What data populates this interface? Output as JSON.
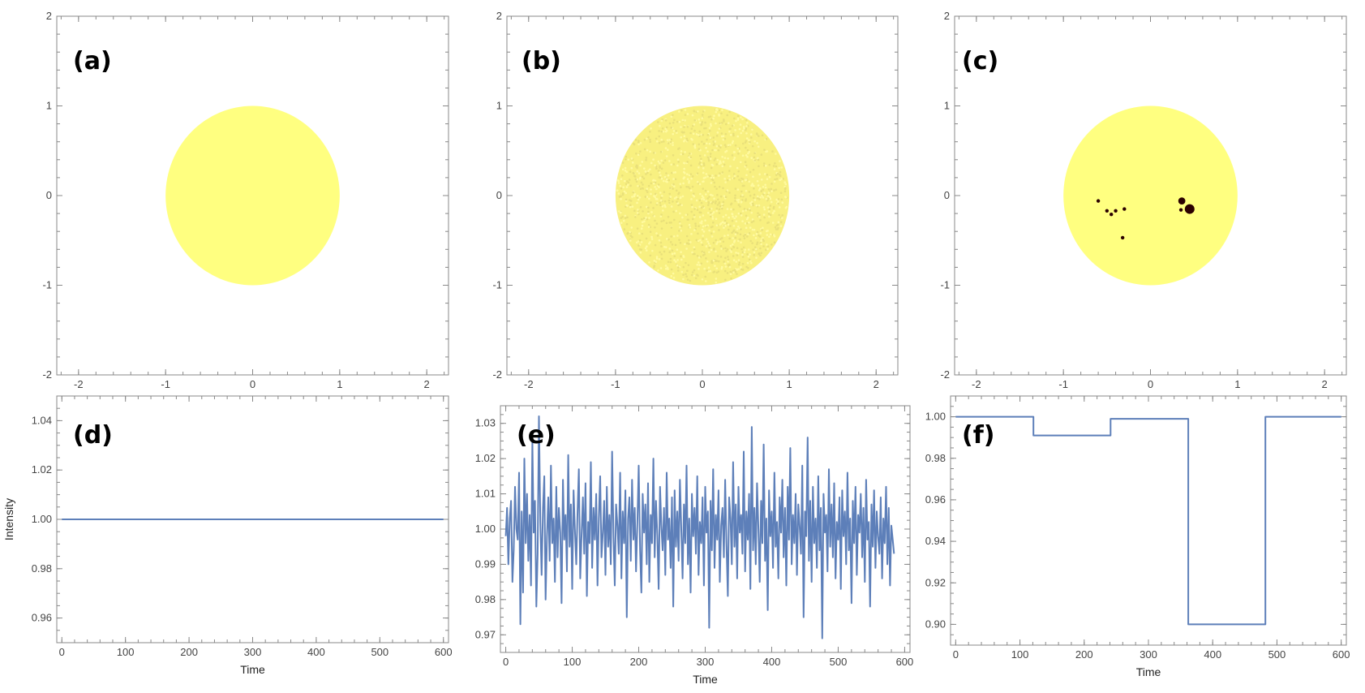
{
  "chart_data": [
    {
      "panel": "(a)",
      "type": "scatter",
      "title": "",
      "xlabel": "",
      "ylabel": "",
      "xlim": [
        -2.25,
        2.25
      ],
      "ylim": [
        -2,
        2
      ],
      "xticks": [
        "-2",
        "-1",
        "0",
        "1",
        "2"
      ],
      "yticks": [
        "-2",
        "-1",
        "0",
        "1",
        "2"
      ],
      "disk": {
        "center": [
          0,
          0
        ],
        "radius": 1,
        "color": "#ffff80",
        "texture": "uniform"
      },
      "spots": []
    },
    {
      "panel": "(b)",
      "type": "scatter",
      "title": "",
      "xlabel": "",
      "ylabel": "",
      "xlim": [
        -2.25,
        2.25
      ],
      "ylim": [
        -2,
        2
      ],
      "xticks": [
        "-2",
        "-1",
        "0",
        "1",
        "2"
      ],
      "yticks": [
        "-2",
        "-1",
        "0",
        "1",
        "2"
      ],
      "disk": {
        "center": [
          0,
          0
        ],
        "radius": 1,
        "color": "#f8f080",
        "texture": "granulated"
      },
      "spots": []
    },
    {
      "panel": "(c)",
      "type": "scatter",
      "title": "",
      "xlabel": "",
      "ylabel": "",
      "xlim": [
        -2.25,
        2.25
      ],
      "ylim": [
        -2,
        2
      ],
      "xticks": [
        "-2",
        "-1",
        "0",
        "1",
        "2"
      ],
      "yticks": [
        "-2",
        "-1",
        "0",
        "1",
        "2"
      ],
      "disk": {
        "center": [
          0,
          0
        ],
        "radius": 1,
        "color": "#ffff80",
        "texture": "uniform"
      },
      "spot_color": "#2b0000",
      "spots": [
        {
          "x": -0.6,
          "y": -0.06,
          "r": 0.02
        },
        {
          "x": -0.5,
          "y": -0.17,
          "r": 0.02
        },
        {
          "x": -0.45,
          "y": -0.21,
          "r": 0.02
        },
        {
          "x": -0.4,
          "y": -0.17,
          "r": 0.02
        },
        {
          "x": -0.3,
          "y": -0.15,
          "r": 0.02
        },
        {
          "x": -0.32,
          "y": -0.47,
          "r": 0.02
        },
        {
          "x": 0.36,
          "y": -0.06,
          "r": 0.04
        },
        {
          "x": 0.35,
          "y": -0.16,
          "r": 0.02
        },
        {
          "x": 0.45,
          "y": -0.15,
          "r": 0.055
        }
      ]
    },
    {
      "panel": "(d)",
      "type": "line",
      "title": "",
      "xlabel": "Time",
      "ylabel": "Intensity",
      "xlim": [
        -8,
        608
      ],
      "ylim": [
        0.95,
        1.05
      ],
      "xticks": [
        0,
        100,
        200,
        300,
        400,
        500,
        600
      ],
      "yticks": [
        0.96,
        0.98,
        1.0,
        1.02,
        1.04
      ],
      "yticks_text": [
        "0.96",
        "0.98",
        "1.00",
        "1.02",
        "1.04"
      ],
      "color": "#5d7fb9",
      "series": [
        {
          "x": [
            0,
            600
          ],
          "values": [
            1.0,
            1.0
          ]
        }
      ]
    },
    {
      "panel": "(e)",
      "type": "line",
      "title": "",
      "xlabel": "Time",
      "ylabel": "",
      "xlim": [
        -8,
        608
      ],
      "ylim": [
        0.965,
        1.035
      ],
      "xticks": [
        0,
        100,
        200,
        300,
        400,
        500,
        600
      ],
      "yticks": [
        0.97,
        0.98,
        0.99,
        1.0,
        1.01,
        1.02,
        1.03
      ],
      "yticks_text": [
        "0.97",
        "0.98",
        "0.99",
        "1.00",
        "1.01",
        "1.02",
        "1.03"
      ],
      "color": "#5d7fb9",
      "series": [
        {
          "x_start": 0,
          "x_step": 2,
          "values": [
            0.998,
            1.006,
            0.99,
            1.003,
            1.008,
            0.985,
            0.994,
            1.012,
            1.0,
            0.997,
            1.016,
            0.973,
            1.005,
            0.982,
            1.02,
            0.996,
            1.01,
            0.991,
            1.004,
            0.984,
            1.025,
            0.999,
            1.008,
            0.978,
            0.993,
            1.032,
            1.002,
            0.987,
            1.006,
            1.015,
            0.98,
            0.998,
            1.009,
            0.991,
            1.018,
            0.996,
            1.003,
            0.985,
            1.012,
            0.992,
            1.006,
            0.999,
            0.979,
            1.014,
            0.997,
            1.004,
            0.988,
            1.021,
            0.995,
            1.007,
            0.983,
            1.011,
            1.0,
            0.99,
            1.005,
            1.017,
            0.986,
            0.998,
            1.009,
            0.993,
            1.013,
            0.981,
            1.002,
            0.996,
            1.019,
            0.989,
            1.006,
            0.997,
            1.01,
            0.984,
            1.003,
            1.015,
            0.992,
            0.999,
            1.008,
            0.987,
            1.012,
            0.995,
            1.004,
            0.99,
            1.022,
            0.998,
            0.984,
            1.007,
            1.001,
            0.993,
            1.016,
            0.986,
            1.005,
            0.996,
            1.011,
            0.975,
            1.003,
            1.009,
            0.991,
            1.014,
            0.997,
            1.006,
            0.988,
            1.002,
            1.018,
            0.994,
            0.982,
            1.01,
            0.999,
            1.007,
            0.99,
            1.013,
            0.985,
            1.004,
            0.996,
            1.02,
            0.992,
            1.008,
            0.998,
            0.983,
            1.012,
            1.001,
            0.994,
            1.006,
            0.987,
            1.016,
            0.997,
            1.003,
            0.989,
            1.009,
            0.978,
            1.011,
            0.995,
            1.005,
            0.991,
            1.014,
            1.0,
            0.986,
            1.007,
            0.996,
            1.018,
            0.99,
            1.003,
            0.982,
            1.01,
            0.998,
            1.006,
            0.993,
            1.015,
            0.987,
            1.002,
            0.996,
            1.009,
            0.984,
            1.012,
            0.999,
            1.005,
            0.972,
            1.008,
            0.994,
            1.017,
            0.989,
            1.004,
            0.997,
            1.011,
            0.985,
            1.001,
            1.006,
            0.992,
            1.014,
            0.996,
            0.981,
            1.009,
            1.003,
            0.99,
            1.019,
            0.995,
            1.007,
            0.986,
            1.012,
            0.999,
            1.004,
            0.993,
            1.022,
            0.988,
            1.005,
            0.997,
            1.01,
            0.983,
            1.029,
            0.994,
            1.006,
            0.99,
            1.013,
            1.0,
            0.985,
            1.008,
            0.996,
            1.024,
            0.991,
            1.003,
            0.977,
            1.011,
            0.998,
            1.005,
            0.989,
            1.016,
            0.995,
            1.002,
            0.986,
            1.009,
            0.999,
            1.014,
            0.992,
            1.006,
            0.984,
            1.012,
            0.997,
            1.023,
            0.99,
            1.004,
            0.996,
            1.01,
            0.987,
            1.007,
            1.001,
            0.993,
            1.018,
            0.975,
            1.005,
            0.998,
            1.026,
            0.991,
            1.008,
            0.985,
            1.012,
            0.996,
            1.003,
            0.989,
            1.015,
            0.994,
            1.006,
            0.969,
            1.01,
            0.999,
            1.004,
            0.988,
            1.017,
            0.995,
            1.007,
            0.992,
            1.013,
            0.986,
            1.002,
            0.997,
            1.009,
            0.983,
            1.011,
            0.998,
            1.005,
            0.99,
            1.016,
            0.994,
            1.003,
            0.979,
            1.008,
            0.996,
            1.012,
            0.987,
            1.004,
            0.999,
            1.01,
            0.992,
            1.006,
            0.985,
            1.014,
            0.997,
            1.002,
            0.978,
            1.007,
            0.995,
            1.011,
            0.989,
            1.005,
            0.998,
            0.993,
            1.009,
            0.986,
            1.003,
            0.996,
            1.012,
            0.99,
            1.006,
            0.984,
            1.001,
            0.997,
            0.993
          ]
        }
      ]
    },
    {
      "panel": "(f)",
      "type": "line",
      "title": "",
      "xlabel": "Time",
      "ylabel": "",
      "xlim": [
        -8,
        608
      ],
      "ylim": [
        0.89,
        1.01
      ],
      "xticks": [
        0,
        100,
        200,
        300,
        400,
        500,
        600
      ],
      "yticks": [
        0.9,
        0.92,
        0.94,
        0.96,
        0.98,
        1.0
      ],
      "yticks_text": [
        "0.90",
        "0.92",
        "0.94",
        "0.96",
        "0.98",
        "1.00"
      ],
      "color": "#5d7fb9",
      "series": [
        {
          "x": [
            0,
            121,
            121,
            241,
            241,
            362,
            362,
            482,
            482,
            600
          ],
          "values": [
            1.0,
            1.0,
            0.991,
            0.991,
            0.999,
            0.999,
            0.9,
            0.9,
            1.0,
            1.0
          ]
        }
      ]
    }
  ]
}
